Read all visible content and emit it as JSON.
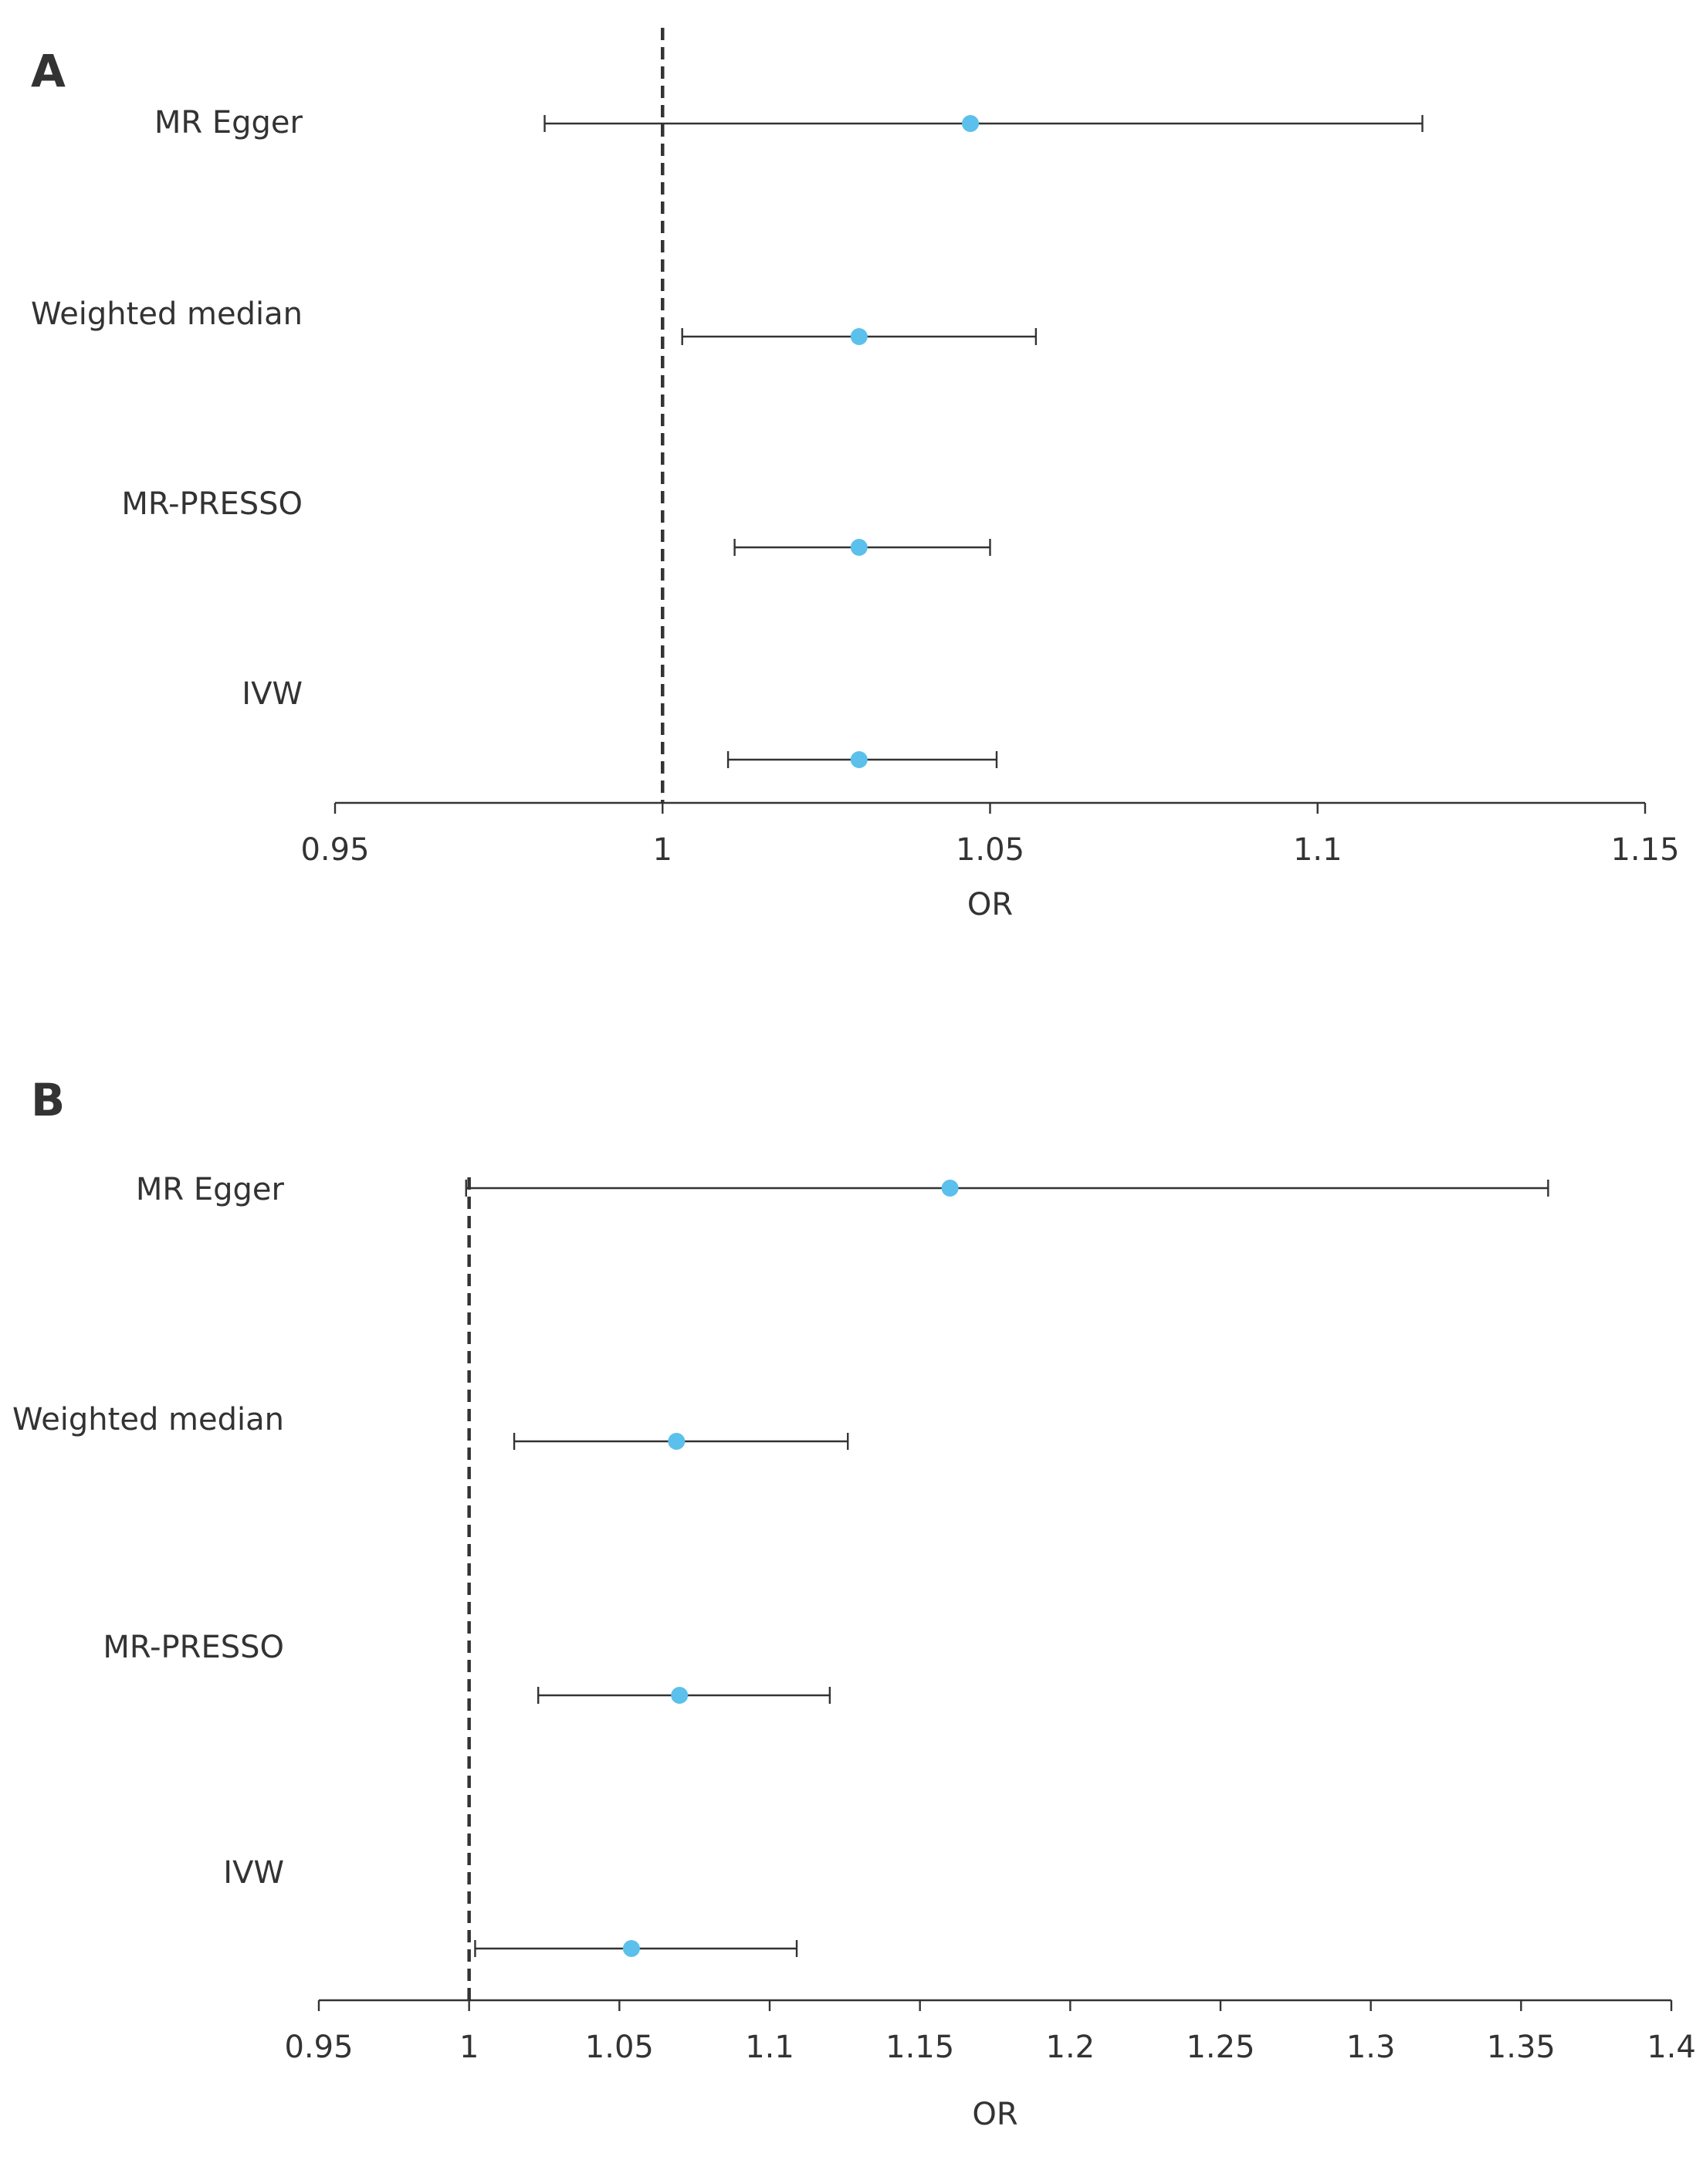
{
  "colors": {
    "point": "#5bc0eb",
    "ink": "#333333",
    "background": "#ffffff"
  },
  "chart_data": [
    {
      "type": "forest",
      "panel_label": "A",
      "xlabel": "OR",
      "xlim": [
        0.95,
        1.15
      ],
      "xticks": [
        0.95,
        1,
        1.05,
        1.1,
        1.15
      ],
      "tick_labels": [
        "0.95",
        "1",
        "1.05",
        "1.1",
        "1.15"
      ],
      "reference_line": 1,
      "methods": [
        "MR Egger",
        "Weighted median",
        "MR-PRESSO",
        "IVW"
      ],
      "or": [
        1.047,
        1.03,
        1.03,
        1.03
      ],
      "ci_lower": [
        0.982,
        1.003,
        1.011,
        1.01
      ],
      "ci_upper": [
        1.116,
        1.057,
        1.05,
        1.051
      ]
    },
    {
      "type": "forest",
      "panel_label": "B",
      "xlabel": "OR",
      "xlim": [
        0.95,
        1.4
      ],
      "xticks": [
        0.95,
        1,
        1.05,
        1.1,
        1.15,
        1.2,
        1.25,
        1.3,
        1.35,
        1.4
      ],
      "tick_labels": [
        "0.95",
        "1",
        "1.05",
        "1.1",
        "1.15",
        "1.2",
        "1.25",
        "1.3",
        "1.35",
        "1.4"
      ],
      "reference_line": 1,
      "methods": [
        "MR Egger",
        "Weighted median",
        "MR-PRESSO",
        "IVW"
      ],
      "or": [
        1.16,
        1.069,
        1.07,
        1.054
      ],
      "ci_lower": [
        0.999,
        1.015,
        1.023,
        1.002
      ],
      "ci_upper": [
        1.359,
        1.126,
        1.12,
        1.109
      ]
    }
  ]
}
